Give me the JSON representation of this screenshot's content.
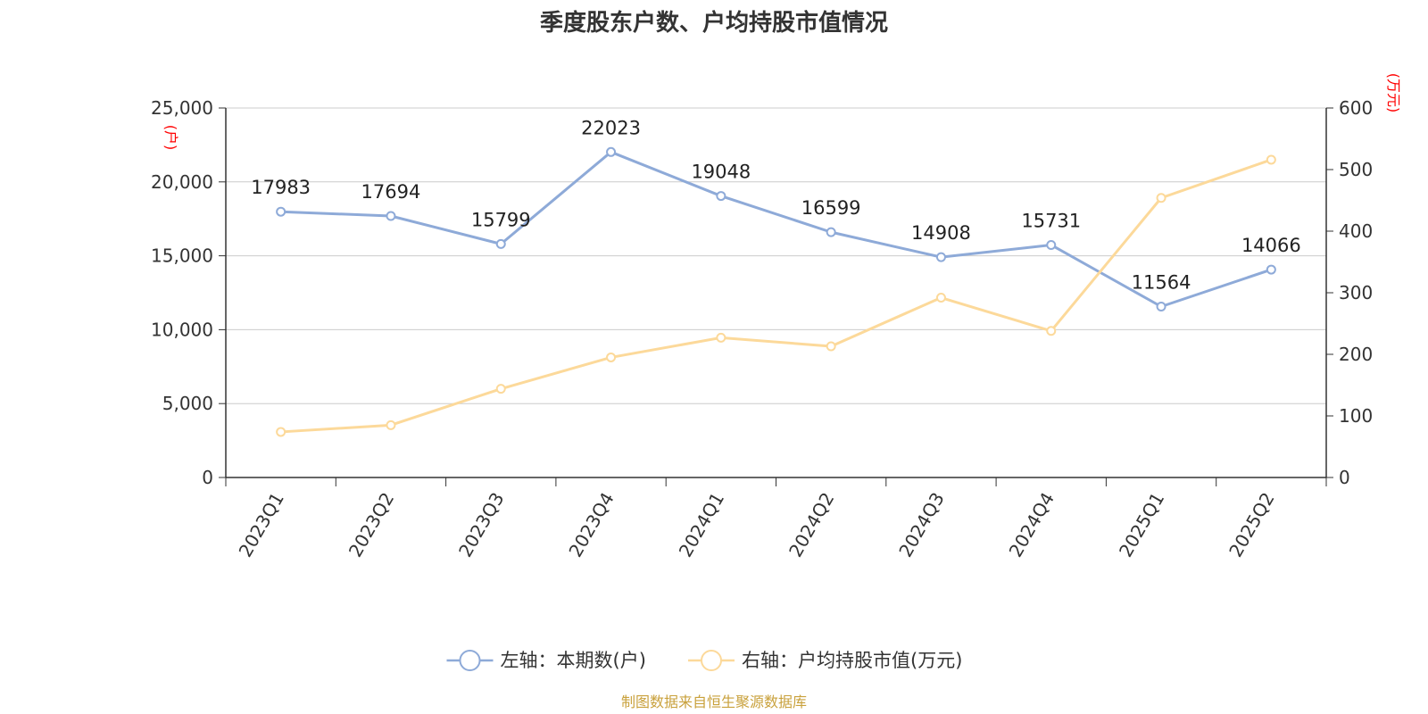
{
  "title": "季度股东户数、户均持股市值情况",
  "left_unit": "(户)",
  "right_unit": "(万元)",
  "source": "制图数据来自恒生聚源数据库",
  "colors": {
    "left_series": "#8eaad8",
    "right_series": "#fcd99a",
    "grid": "#cccccc",
    "axis": "#333333",
    "unit": "#ff0000",
    "source": "#c9a13c"
  },
  "chart_data": {
    "type": "line",
    "categories": [
      "2023Q1",
      "2023Q2",
      "2023Q3",
      "2023Q4",
      "2024Q1",
      "2024Q2",
      "2024Q3",
      "2024Q4",
      "2025Q1",
      "2025Q2"
    ],
    "left_axis": {
      "ylim": [
        0,
        25000
      ],
      "ticks": [
        "0",
        "5,000",
        "10,000",
        "15,000",
        "20,000",
        "25,000"
      ]
    },
    "right_axis": {
      "ylim": [
        0,
        600
      ],
      "ticks": [
        "0",
        "100",
        "200",
        "300",
        "400",
        "500",
        "600"
      ]
    },
    "grid": true,
    "legend_position": "bottom",
    "series": [
      {
        "name": "左轴：本期数(户)",
        "axis": "left",
        "values": [
          17983,
          17694,
          15799,
          22023,
          19048,
          16599,
          14908,
          15731,
          11564,
          14066
        ],
        "labels": [
          "17983",
          "17694",
          "15799",
          "22023",
          "19048",
          "16599",
          "14908",
          "15731",
          "11564",
          "14066"
        ]
      },
      {
        "name": "右轴：户均持股市值(万元)",
        "axis": "right",
        "values": [
          74,
          85,
          144,
          195,
          227,
          213,
          292,
          238,
          454,
          516
        ]
      }
    ]
  }
}
